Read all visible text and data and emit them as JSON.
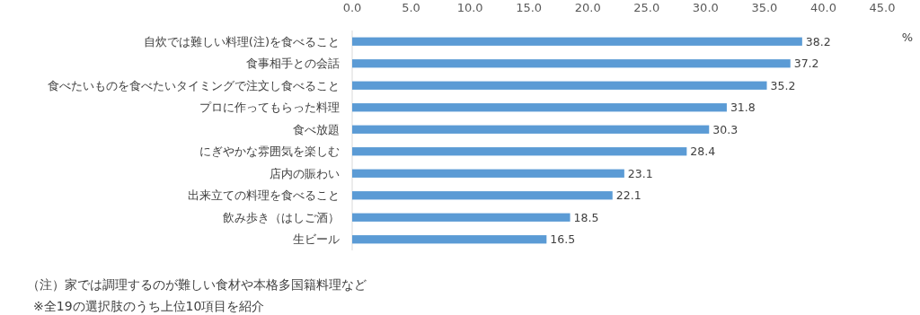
{
  "chart_data": {
    "type": "bar",
    "orientation": "horizontal",
    "xlabel": "%",
    "categories": [
      "自炊では難しい料理(注)を食べること",
      "食事相手との会話",
      "食べたいものを食べたいタイミングで注文し食べること",
      "プロに作ってもらった料理",
      "食べ放題",
      "にぎやかな雰囲気を楽しむ",
      "店内の賑わい",
      "出来立ての料理を食べること",
      "飲み歩き（はしご酒）",
      "生ビール"
    ],
    "values": [
      38.2,
      37.2,
      35.2,
      31.8,
      30.3,
      28.4,
      23.1,
      22.1,
      18.5,
      16.5
    ],
    "color": "#5b9bd5",
    "data_labels": true,
    "grid": false,
    "xlim": [
      0,
      45
    ],
    "xticks": [
      {
        "value": 0,
        "label": "0.0"
      },
      {
        "value": 5,
        "label": "5.0"
      },
      {
        "value": 10,
        "label": "10.0"
      },
      {
        "value": 15,
        "label": "15.0"
      },
      {
        "value": 20,
        "label": "20.0"
      },
      {
        "value": 25,
        "label": "25.0"
      },
      {
        "value": 30,
        "label": "30.0"
      },
      {
        "value": 35,
        "label": "35.0"
      },
      {
        "value": 40,
        "label": "40.0"
      },
      {
        "value": 45,
        "label": "45.0"
      }
    ],
    "annotations": [
      "（注）家では調理するのが難しい食材や本格多国籍料理など",
      "※全19の選択肢のうち上位10項目を紹介"
    ]
  }
}
